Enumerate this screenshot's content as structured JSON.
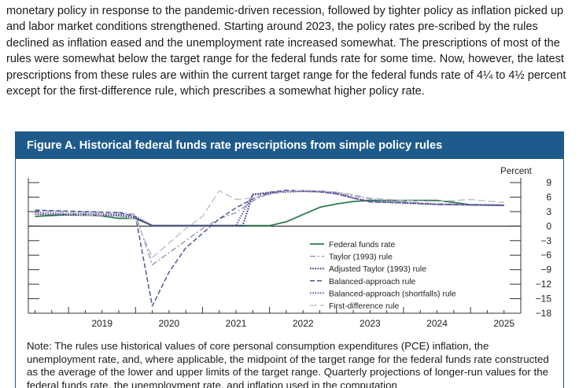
{
  "intro_text": "monetary policy in response to the pandemic-driven recession, followed by tighter policy as inflation picked up and labor market conditions strengthened. Starting around 2023, the policy rates pre-scribed by the rules declined as inflation eased and the unemployment rate increased somewhat. The prescriptions of most of the rules were somewhat below the target range for the federal funds rate for some time. Now, however, the latest prescriptions from these rules are within the current target range for the federal funds rate of 4¼ to 4½ percent except for the first-difference rule, which prescribes a somewhat higher policy rate.",
  "figure": {
    "title": "Figure A. Historical federal funds rate prescriptions from simple policy rules",
    "note": "Note: The rules use historical values of core personal consumption expenditures (PCE) inflation, the unemployment rate, and, where applicable, the midpoint of the target range for the federal funds rate constructed as the average of the lower and upper limits of the target range. Quarterly projections of longer-run values for the federal funds rate, the unemployment rate, and inflation used in the computation"
  },
  "colors": {
    "header_bg": "#1e5b8c",
    "federal_funds": "#2e7d4f",
    "taylor": "#8a8fb0",
    "adjusted_taylor": "#2a2f6a",
    "balanced": "#4a5896",
    "balanced_shortfalls": "#6f58a8",
    "first_difference": "#b9b9c9"
  },
  "chart_data": {
    "type": "line",
    "ylabel": "Percent",
    "ylim": [
      -18,
      9
    ],
    "yticks": [
      9,
      6,
      3,
      0,
      -3,
      -6,
      -9,
      -12,
      -15,
      -18
    ],
    "xlim": [
      2018.4,
      2025.75
    ],
    "xticks": [
      2019,
      2020,
      2021,
      2022,
      2023,
      2024,
      2025
    ],
    "legend_position": "center-right",
    "series": [
      {
        "name": "Federal funds rate",
        "style": "solid",
        "color": "#2e7d4f",
        "x": [
          2018.5,
          2018.75,
          2019.0,
          2019.25,
          2019.5,
          2019.75,
          2020.0,
          2020.25,
          2020.5,
          2021.0,
          2021.5,
          2021.75,
          2022.0,
          2022.25,
          2022.5,
          2022.75,
          2023.0,
          2023.25,
          2023.5,
          2024.0,
          2024.5,
          2024.75,
          2025.0,
          2025.5
        ],
        "y": [
          2.0,
          2.2,
          2.4,
          2.4,
          2.1,
          1.6,
          1.6,
          0.1,
          0.1,
          0.1,
          0.1,
          0.1,
          0.1,
          0.9,
          2.4,
          3.9,
          4.6,
          5.1,
          5.3,
          5.3,
          5.3,
          4.9,
          4.4,
          4.3
        ]
      },
      {
        "name": "Taylor (1993) rule",
        "style": "dash-dot",
        "color": "#8a8fb0",
        "x": [
          2018.5,
          2019.0,
          2019.5,
          2019.75,
          2020.0,
          2020.25,
          2020.5,
          2020.75,
          2021.0,
          2021.25,
          2021.5,
          2021.75,
          2022.0,
          2022.25,
          2022.5,
          2022.75,
          2023.0,
          2023.25,
          2023.5,
          2024.0,
          2024.5,
          2025.0,
          2025.5
        ],
        "y": [
          3.2,
          3.0,
          2.8,
          2.9,
          2.4,
          -8.0,
          -5.5,
          -3.0,
          -0.5,
          1.5,
          2.8,
          5.2,
          6.8,
          7.3,
          7.2,
          7.3,
          7.0,
          6.3,
          5.6,
          5.0,
          4.6,
          4.5,
          4.4
        ]
      },
      {
        "name": "Adjusted Taylor (1993) rule",
        "style": "dotted",
        "color": "#2a2f6a",
        "x": [
          2018.5,
          2019.0,
          2019.5,
          2019.75,
          2020.0,
          2020.25,
          2020.5,
          2021.0,
          2021.5,
          2021.6,
          2021.75,
          2022.0,
          2022.25,
          2022.5,
          2022.75,
          2023.0,
          2023.25,
          2023.5,
          2024.0,
          2024.5,
          2025.0,
          2025.5
        ],
        "y": [
          2.5,
          2.3,
          2.2,
          2.2,
          1.7,
          0.1,
          0.1,
          0.1,
          0.1,
          0.1,
          6.5,
          6.8,
          7.1,
          7.2,
          7.1,
          6.7,
          5.8,
          5.1,
          4.8,
          4.5,
          4.4,
          4.3
        ]
      },
      {
        "name": "Balanced-approach rule",
        "style": "dashed",
        "color": "#4a5896",
        "x": [
          2018.5,
          2019.0,
          2019.5,
          2019.75,
          2020.0,
          2020.25,
          2020.5,
          2020.75,
          2021.0,
          2021.25,
          2021.5,
          2021.75,
          2022.0,
          2022.25,
          2022.5,
          2022.75,
          2023.0,
          2023.25,
          2023.5,
          2024.0,
          2024.5,
          2025.0,
          2025.5
        ],
        "y": [
          3.3,
          3.1,
          2.9,
          2.8,
          2.0,
          -16.5,
          -9.5,
          -4.5,
          -1.5,
          1.5,
          3.8,
          5.6,
          7.0,
          7.4,
          7.3,
          7.1,
          6.7,
          5.8,
          5.0,
          4.8,
          4.5,
          4.4,
          4.3
        ]
      },
      {
        "name": "Balanced-approach (shortfalls) rule",
        "style": "dotted",
        "color": "#6f58a8",
        "x": [
          2018.5,
          2019.0,
          2019.5,
          2019.75,
          2020.0,
          2020.25,
          2020.5,
          2021.0,
          2021.5,
          2021.75,
          2022.0,
          2022.25,
          2022.5,
          2022.75,
          2023.0,
          2023.25,
          2023.5,
          2024.0,
          2024.5,
          2025.0,
          2025.5
        ],
        "y": [
          2.8,
          2.6,
          2.5,
          2.5,
          2.0,
          0.1,
          0.1,
          0.1,
          0.1,
          6.6,
          7.0,
          7.2,
          7.3,
          7.2,
          6.8,
          5.9,
          5.1,
          4.8,
          4.5,
          4.4,
          4.3
        ]
      },
      {
        "name": "First-difference rule",
        "style": "long-dash",
        "color": "#b9b9c9",
        "x": [
          2018.5,
          2019.0,
          2019.5,
          2019.75,
          2020.0,
          2020.25,
          2020.5,
          2020.75,
          2021.0,
          2021.25,
          2021.5,
          2021.75,
          2022.0,
          2022.25,
          2022.5,
          2022.75,
          2023.0,
          2023.25,
          2023.5,
          2024.0,
          2024.5,
          2025.0,
          2025.5
        ],
        "y": [
          2.6,
          2.5,
          2.2,
          2.0,
          1.5,
          -6.5,
          -3.5,
          -0.5,
          2.0,
          7.3,
          5.5,
          5.8,
          6.5,
          7.2,
          7.4,
          7.3,
          7.0,
          6.5,
          5.8,
          5.3,
          5.1,
          5.5,
          4.9
        ]
      }
    ]
  }
}
